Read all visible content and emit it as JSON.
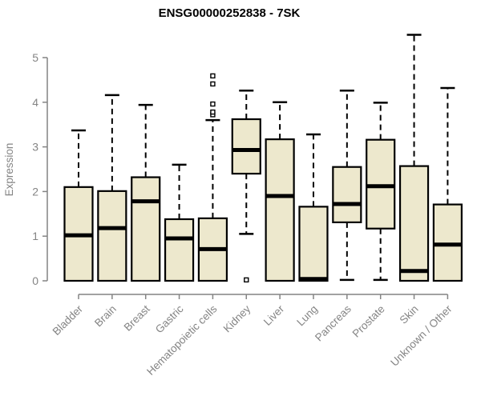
{
  "chart_data": {
    "type": "boxplot",
    "title": "ENSG00000252838 - 7SK",
    "xlabel": "",
    "ylabel": "Expression",
    "ylim": [
      0,
      5.6
    ],
    "yticks": [
      0,
      1,
      2,
      3,
      4,
      5
    ],
    "grid": false,
    "legend": "none",
    "categories": [
      "Bladder",
      "Brain",
      "Breast",
      "Gastric",
      "Hematopoietic cells",
      "Kidney",
      "Liver",
      "Lung",
      "Pancreas",
      "Prostate",
      "Skin",
      "Unknown / Other"
    ],
    "boxes": [
      {
        "label": "Bladder",
        "whislo": 0,
        "q1": 0,
        "med": 1.02,
        "q3": 2.1,
        "whishi": 3.37,
        "outliers": []
      },
      {
        "label": "Brain",
        "whislo": 0,
        "q1": 0,
        "med": 1.18,
        "q3": 2.01,
        "whishi": 4.16,
        "outliers": []
      },
      {
        "label": "Breast",
        "whislo": 0,
        "q1": 0,
        "med": 1.78,
        "q3": 2.32,
        "whishi": 3.94,
        "outliers": []
      },
      {
        "label": "Gastric",
        "whislo": 0,
        "q1": 0,
        "med": 0.95,
        "q3": 1.38,
        "whishi": 2.6,
        "outliers": []
      },
      {
        "label": "Hematopoietic cells",
        "whislo": 0,
        "q1": 0,
        "med": 0.71,
        "q3": 1.4,
        "whishi": 3.6,
        "outliers": [
          3.72,
          3.78,
          3.96,
          4.41,
          4.59
        ]
      },
      {
        "label": "Kidney",
        "whislo": 1.05,
        "q1": 2.4,
        "med": 2.93,
        "q3": 3.62,
        "whishi": 4.26,
        "outliers": [
          0.02
        ]
      },
      {
        "label": "Liver",
        "whislo": 0,
        "q1": 0,
        "med": 1.9,
        "q3": 3.17,
        "whishi": 4.0,
        "outliers": []
      },
      {
        "label": "Lung",
        "whislo": 0,
        "q1": 0,
        "med": 0.04,
        "q3": 1.66,
        "whishi": 3.28,
        "outliers": []
      },
      {
        "label": "Pancreas",
        "whislo": 0.02,
        "q1": 1.31,
        "med": 1.72,
        "q3": 2.55,
        "whishi": 4.26,
        "outliers": []
      },
      {
        "label": "Prostate",
        "whislo": 0.02,
        "q1": 1.17,
        "med": 2.12,
        "q3": 3.16,
        "whishi": 3.99,
        "outliers": []
      },
      {
        "label": "Skin",
        "whislo": 0,
        "q1": 0,
        "med": 0.22,
        "q3": 2.57,
        "whishi": 5.51,
        "outliers": []
      },
      {
        "label": "Unknown / Other",
        "whislo": 0,
        "q1": 0,
        "med": 0.81,
        "q3": 1.71,
        "whishi": 4.32,
        "outliers": []
      }
    ],
    "colors": {
      "box_fill": "#EDE8CD",
      "box_stroke": "#000000",
      "median": "#000000",
      "whisker": "#000000",
      "outlier_stroke": "#000000",
      "outlier_fill": "#ffffff",
      "axis": "#848484",
      "tick_label": "#848484",
      "title": "#000000",
      "background": "#FFFFFF"
    }
  }
}
